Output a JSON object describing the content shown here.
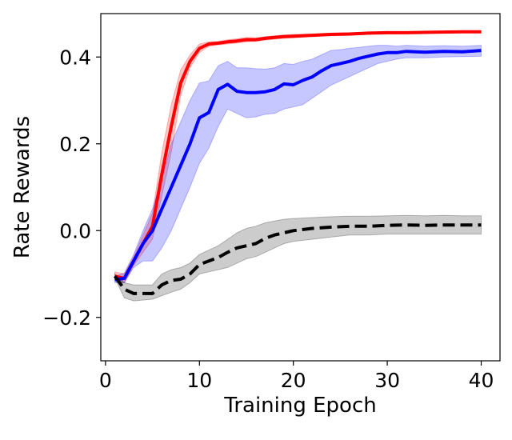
{
  "chart_data": {
    "type": "line",
    "title": "",
    "xlabel": "Training Epoch",
    "ylabel": "Rate Rewards",
    "xlim": [
      -0.5,
      42
    ],
    "ylim": [
      -0.3,
      0.5
    ],
    "xticks": [
      0,
      10,
      20,
      30,
      40
    ],
    "xtick_labels": [
      "0",
      "10",
      "20",
      "30",
      "40"
    ],
    "yticks": [
      -0.2,
      0.0,
      0.2,
      0.4
    ],
    "ytick_labels": [
      "−0.2",
      "0.0",
      "0.2",
      "0.4"
    ],
    "grid": false,
    "legend": false,
    "series": [
      {
        "name": "red",
        "color": "#ff0000",
        "style": "solid",
        "x": [
          1,
          2,
          3,
          4,
          5,
          6,
          7,
          8,
          9,
          10,
          11,
          12,
          13,
          14,
          15,
          16,
          17,
          18,
          19,
          20,
          22,
          24,
          26,
          28,
          30,
          32,
          35,
          38,
          40
        ],
        "y": [
          -0.105,
          -0.11,
          -0.07,
          -0.03,
          0.01,
          0.13,
          0.24,
          0.34,
          0.39,
          0.42,
          0.43,
          0.432,
          0.435,
          0.437,
          0.44,
          0.44,
          0.443,
          0.445,
          0.447,
          0.448,
          0.45,
          0.452,
          0.453,
          0.455,
          0.456,
          0.456,
          0.457,
          0.458,
          0.458
        ],
        "band_lower": [
          -0.115,
          -0.12,
          -0.08,
          -0.05,
          -0.02,
          0.08,
          0.18,
          0.31,
          0.375,
          0.41,
          0.425,
          0.428,
          0.43,
          0.432,
          0.435,
          0.436,
          0.439,
          0.441,
          0.443,
          0.444,
          0.447,
          0.449,
          0.45,
          0.452,
          0.453,
          0.454,
          0.455,
          0.456,
          0.456
        ],
        "band_upper": [
          -0.095,
          -0.1,
          -0.06,
          -0.01,
          0.04,
          0.18,
          0.29,
          0.37,
          0.405,
          0.43,
          0.435,
          0.436,
          0.44,
          0.442,
          0.445,
          0.444,
          0.447,
          0.449,
          0.451,
          0.452,
          0.453,
          0.455,
          0.456,
          0.457,
          0.459,
          0.458,
          0.459,
          0.46,
          0.46
        ]
      },
      {
        "name": "blue",
        "color": "#0000ff",
        "style": "solid",
        "x": [
          1,
          2,
          3,
          4,
          5,
          6,
          7,
          8,
          9,
          10,
          11,
          12,
          13,
          14,
          15,
          16,
          17,
          18,
          19,
          20,
          21,
          22,
          23,
          24,
          25,
          26,
          27,
          28,
          29,
          30,
          31,
          32,
          34,
          36,
          38,
          40
        ],
        "y": [
          -0.113,
          -0.11,
          -0.07,
          -0.03,
          0.0,
          0.05,
          0.1,
          0.15,
          0.2,
          0.26,
          0.272,
          0.325,
          0.337,
          0.321,
          0.318,
          0.318,
          0.32,
          0.325,
          0.338,
          0.336,
          0.346,
          0.354,
          0.368,
          0.38,
          0.385,
          0.39,
          0.397,
          0.402,
          0.407,
          0.41,
          0.41,
          0.413,
          0.411,
          0.413,
          0.412,
          0.415
        ],
        "band_lower": [
          -0.12,
          -0.12,
          -0.085,
          -0.07,
          -0.07,
          -0.04,
          0.0,
          0.05,
          0.1,
          0.155,
          0.19,
          0.24,
          0.28,
          0.27,
          0.26,
          0.262,
          0.268,
          0.27,
          0.28,
          0.285,
          0.29,
          0.305,
          0.32,
          0.335,
          0.345,
          0.355,
          0.365,
          0.375,
          0.385,
          0.39,
          0.395,
          0.398,
          0.398,
          0.4,
          0.401,
          0.402
        ],
        "band_upper": [
          -0.105,
          -0.098,
          -0.055,
          0.0,
          0.05,
          0.12,
          0.2,
          0.25,
          0.3,
          0.34,
          0.345,
          0.38,
          0.39,
          0.375,
          0.375,
          0.373,
          0.372,
          0.375,
          0.385,
          0.383,
          0.39,
          0.395,
          0.405,
          0.415,
          0.417,
          0.42,
          0.422,
          0.425,
          0.427,
          0.427,
          0.425,
          0.427,
          0.425,
          0.426,
          0.425,
          0.427
        ]
      },
      {
        "name": "black",
        "color": "#000000",
        "style": "dashed",
        "x": [
          1,
          2,
          3,
          4,
          5,
          6,
          7,
          8,
          9,
          10,
          11,
          12,
          13,
          14,
          15,
          16,
          17,
          18,
          19,
          20,
          22,
          24,
          26,
          28,
          30,
          32,
          34,
          36,
          38,
          40
        ],
        "y": [
          -0.105,
          -0.135,
          -0.145,
          -0.145,
          -0.145,
          -0.125,
          -0.115,
          -0.112,
          -0.1,
          -0.078,
          -0.07,
          -0.062,
          -0.05,
          -0.04,
          -0.035,
          -0.03,
          -0.018,
          -0.01,
          -0.005,
          0.0,
          0.005,
          0.008,
          0.01,
          0.01,
          0.012,
          0.013,
          0.012,
          0.013,
          0.013,
          0.013
        ],
        "band_lower": [
          -0.11,
          -0.155,
          -0.162,
          -0.16,
          -0.158,
          -0.15,
          -0.142,
          -0.135,
          -0.12,
          -0.1,
          -0.095,
          -0.09,
          -0.085,
          -0.075,
          -0.065,
          -0.06,
          -0.05,
          -0.04,
          -0.03,
          -0.025,
          -0.02,
          -0.015,
          -0.01,
          -0.01,
          -0.008,
          -0.008,
          -0.008,
          -0.008,
          -0.008,
          -0.008
        ],
        "band_upper": [
          -0.1,
          -0.12,
          -0.125,
          -0.125,
          -0.125,
          -0.1,
          -0.09,
          -0.085,
          -0.075,
          -0.055,
          -0.045,
          -0.035,
          -0.02,
          -0.005,
          0.005,
          0.01,
          0.018,
          0.022,
          0.026,
          0.028,
          0.03,
          0.032,
          0.033,
          0.033,
          0.034,
          0.035,
          0.034,
          0.035,
          0.034,
          0.034
        ]
      }
    ]
  }
}
